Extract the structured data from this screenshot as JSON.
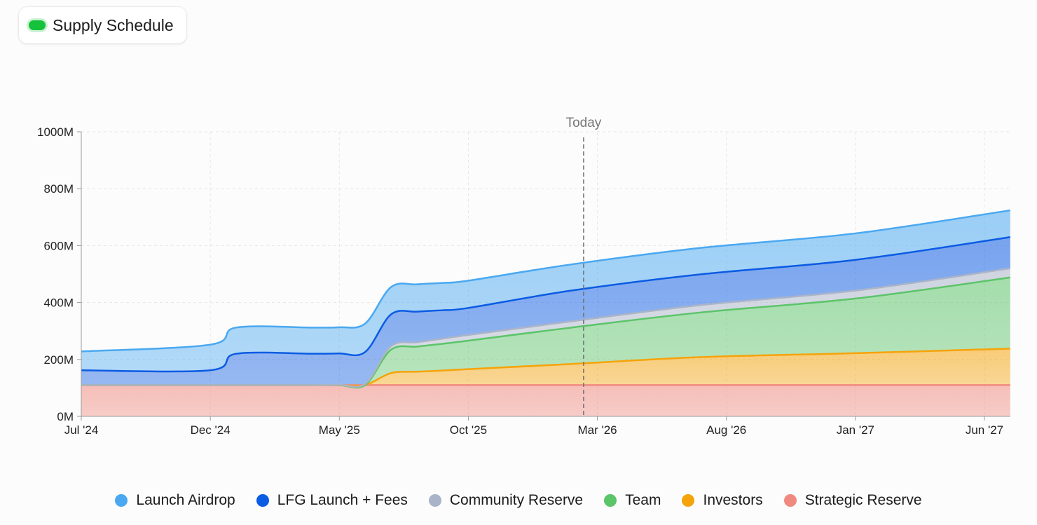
{
  "header": {
    "title": "Supply Schedule"
  },
  "chart_data": {
    "type": "area",
    "stacked": true,
    "title": "Supply Schedule",
    "xlabel": "",
    "ylabel": "",
    "ylim": [
      0,
      1000
    ],
    "y_unit": "M",
    "y_ticks": [
      "0M",
      "200M",
      "400M",
      "600M",
      "800M",
      "1000M"
    ],
    "x_ticks": [
      "Jul '24",
      "Dec '24",
      "May '25",
      "Oct '25",
      "Mar '26",
      "Aug '26",
      "Jan '27",
      "Jun '27"
    ],
    "x_range": [
      "2024-07",
      "2027-07"
    ],
    "grid": true,
    "legend_position": "bottom",
    "annotation": {
      "label": "Today",
      "date": "2026-02-15"
    },
    "x": [
      "2024-07",
      "2024-12",
      "2025-01",
      "2025-04",
      "2025-05",
      "2025-06",
      "2025-07",
      "2025-08",
      "2025-09",
      "2025-10",
      "2026-02",
      "2026-07",
      "2027-01",
      "2027-07"
    ],
    "series": [
      {
        "name": "Strategic Reserve",
        "color": "#f08a80",
        "values": [
          110,
          110,
          110,
          110,
          110,
          110,
          110,
          110,
          110,
          110,
          110,
          110,
          110,
          110
        ]
      },
      {
        "name": "Investors",
        "color": "#f5a30a",
        "values": [
          0,
          0,
          0,
          0,
          0,
          0,
          42,
          47,
          51,
          56,
          74,
          98,
          112,
          128
        ]
      },
      {
        "name": "Team",
        "color": "#5cc469",
        "values": [
          0,
          0,
          0,
          0,
          0,
          0,
          82,
          88,
          94,
          100,
          128,
          157,
          192,
          250
        ]
      },
      {
        "name": "Community Reserve",
        "color": "#aab4c9",
        "values": [
          0,
          0,
          0,
          0,
          1,
          4,
          12,
          15,
          18,
          20,
          22,
          26,
          28,
          32
        ]
      },
      {
        "name": "LFG Launch + Fees",
        "color": "#0b5be3",
        "values": [
          52,
          52,
          110,
          110,
          110,
          112,
          112,
          108,
          100,
          95,
          108,
          108,
          108,
          110
        ]
      },
      {
        "name": "Launch Airdrop",
        "color": "#4aa8f0",
        "values": [
          66,
          90,
          92,
          92,
          92,
          100,
          96,
          96,
          96,
          96,
          92,
          93,
          93,
          94
        ]
      }
    ]
  },
  "legend_items": [
    {
      "label": "Launch Airdrop",
      "color": "#4aa8f0"
    },
    {
      "label": "LFG Launch + Fees",
      "color": "#0b5be3"
    },
    {
      "label": "Community Reserve",
      "color": "#aab4c9"
    },
    {
      "label": "Team",
      "color": "#5cc469"
    },
    {
      "label": "Investors",
      "color": "#f5a30a"
    },
    {
      "label": "Strategic Reserve",
      "color": "#f08a80"
    }
  ]
}
